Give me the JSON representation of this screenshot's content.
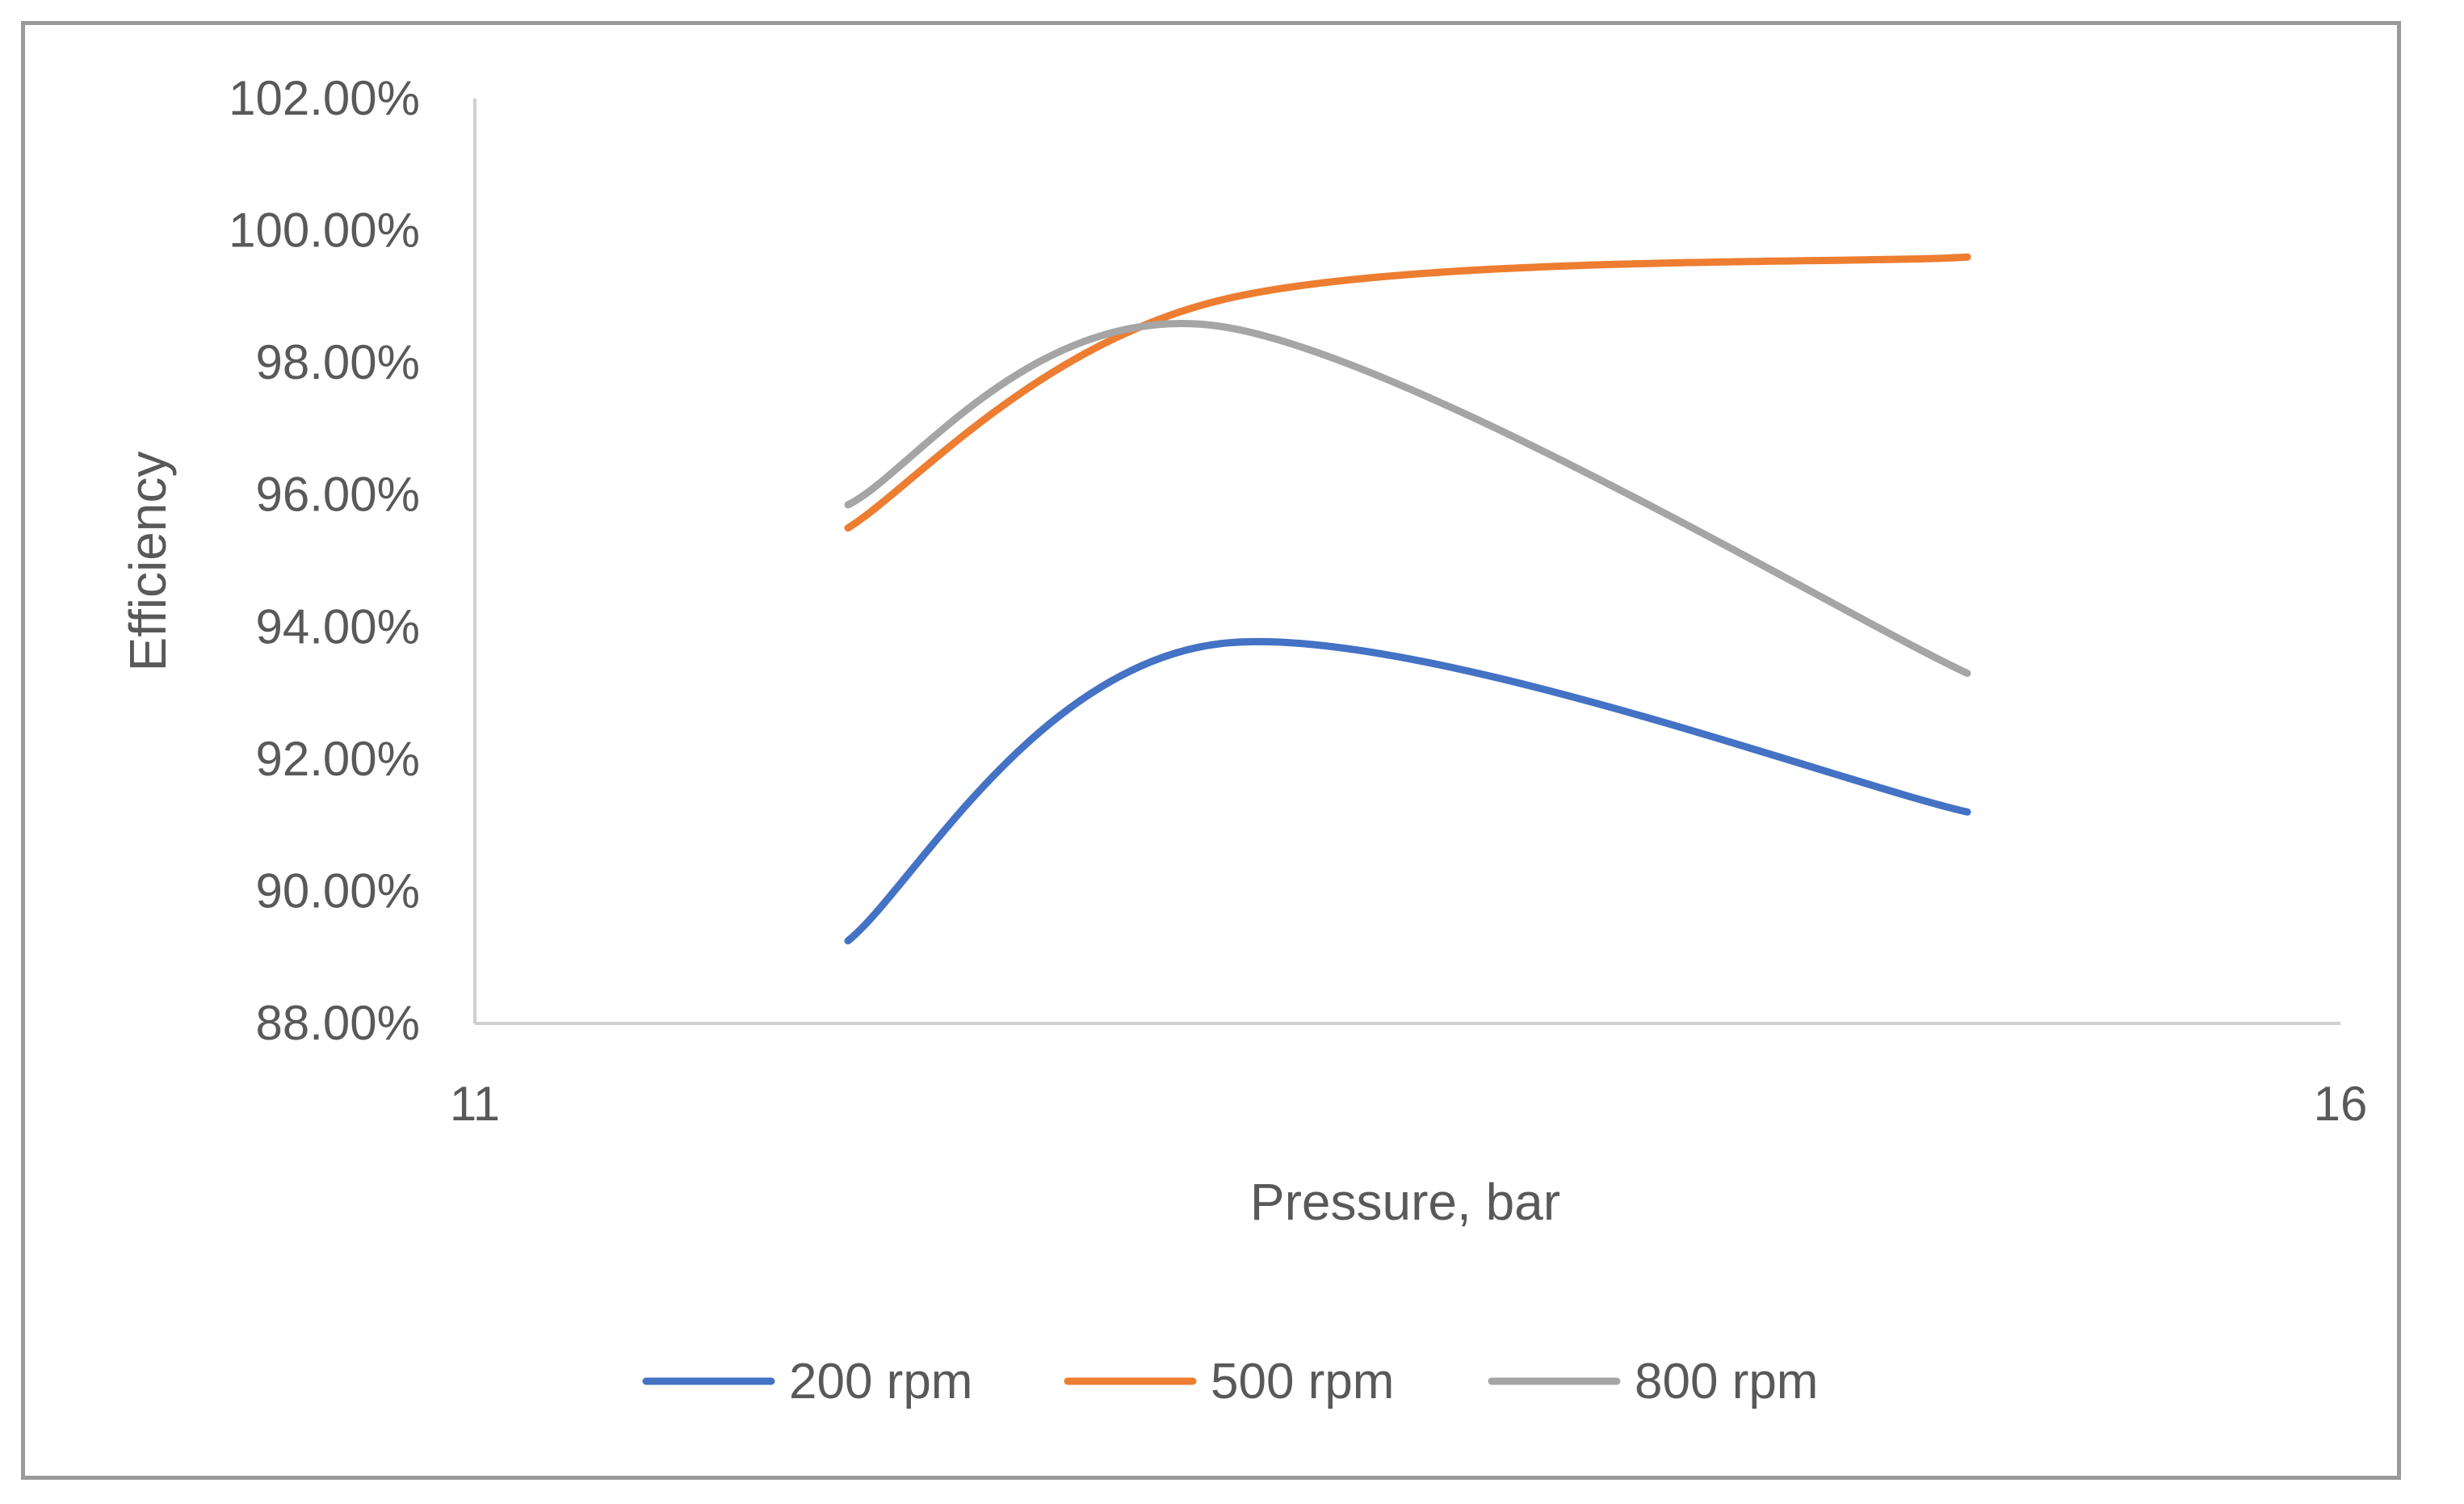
{
  "chart_data": {
    "type": "line",
    "title": "",
    "xlabel": "Pressure, bar",
    "ylabel": "Efficiency",
    "xlim": [
      11,
      16
    ],
    "ylim": [
      0.88,
      1.02
    ],
    "x_ticks": [
      11,
      16
    ],
    "x_tick_labels": [
      "11",
      "16"
    ],
    "y_ticks": [
      0.88,
      0.9,
      0.92,
      0.94,
      0.96,
      0.98,
      1.0,
      1.02
    ],
    "y_tick_labels": [
      "88.00%",
      "90.00%",
      "92.00%",
      "94.00%",
      "96.00%",
      "98.00%",
      "100.00%",
      "102.00%"
    ],
    "grid": false,
    "legend_position": "bottom",
    "smooth": true,
    "series": [
      {
        "name": "200 rpm",
        "color": "#4472C4",
        "x": [
          12,
          13,
          15
        ],
        "values": [
          0.8925,
          0.9375,
          0.912
        ]
      },
      {
        "name": "500 rpm",
        "color": "#ED7D31",
        "x": [
          12,
          13,
          15
        ],
        "values": [
          0.955,
          0.9895,
          0.996
        ]
      },
      {
        "name": "800 rpm",
        "color": "#A5A5A5",
        "x": [
          12,
          13,
          15
        ],
        "values": [
          0.9585,
          0.9855,
          0.933
        ]
      }
    ]
  }
}
